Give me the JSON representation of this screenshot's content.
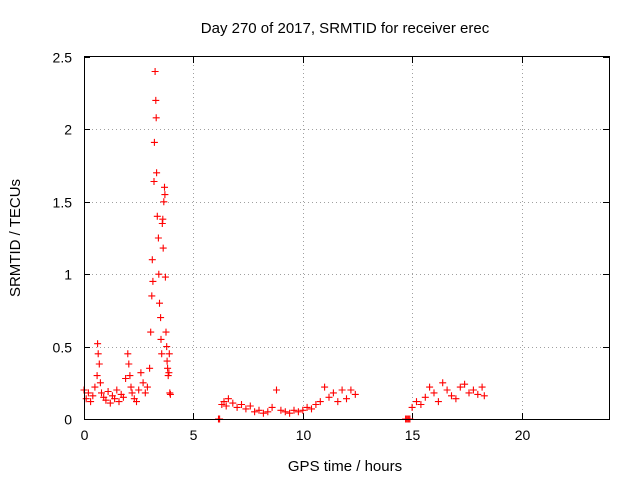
{
  "chart_data": {
    "type": "scatter",
    "title": "Day 270 of 2017, SRMTID for receiver erec",
    "xlabel": "GPS time / hours",
    "ylabel": "SRMTID / TECUs",
    "xlim": [
      0,
      24
    ],
    "ylim": [
      0,
      2.5
    ],
    "xticks": [
      0,
      5,
      10,
      15,
      20
    ],
    "xtick_labels": [
      "0",
      "5",
      "10",
      "15",
      "20"
    ],
    "yticks": [
      0,
      0.5,
      1,
      1.5,
      2,
      2.5
    ],
    "ytick_labels": [
      "0",
      "0.5",
      "1",
      "1.5",
      "2",
      "2.5"
    ],
    "grid": true,
    "marker": "+",
    "series": [
      {
        "name": "SRMTID",
        "color": "#ff0000",
        "x": [
          0.0,
          0.1,
          0.2,
          0.3,
          0.4,
          0.5,
          0.6,
          0.62,
          0.65,
          0.7,
          0.75,
          0.8,
          0.9,
          1.0,
          1.1,
          1.2,
          1.3,
          1.4,
          1.5,
          1.6,
          1.7,
          1.8,
          1.9,
          2.0,
          2.05,
          2.1,
          2.15,
          2.2,
          2.3,
          2.4,
          2.5,
          2.6,
          2.7,
          2.8,
          2.9,
          3.0,
          3.05,
          3.1,
          3.12,
          3.15,
          3.2,
          3.22,
          3.25,
          3.28,
          3.3,
          3.32,
          3.35,
          3.4,
          3.42,
          3.45,
          3.5,
          3.52,
          3.55,
          3.58,
          3.6,
          3.62,
          3.65,
          3.68,
          3.7,
          3.72,
          3.75,
          3.78,
          3.8,
          3.82,
          3.85,
          3.88,
          3.9,
          3.92,
          3.95,
          6.15,
          6.2,
          6.3,
          6.4,
          6.5,
          6.6,
          6.8,
          7.0,
          7.2,
          7.4,
          7.6,
          7.8,
          8.0,
          8.2,
          8.4,
          8.6,
          8.8,
          9.0,
          9.2,
          9.4,
          9.6,
          9.8,
          10.0,
          10.2,
          10.4,
          10.6,
          10.8,
          11.0,
          11.2,
          11.4,
          11.6,
          11.8,
          12.0,
          12.2,
          12.4,
          14.7,
          14.75,
          14.8,
          14.85,
          14.9,
          15.0,
          15.2,
          15.4,
          15.6,
          15.8,
          16.0,
          16.2,
          16.4,
          16.6,
          16.8,
          17.0,
          17.2,
          17.4,
          17.6,
          17.8,
          18.0,
          18.2,
          18.3
        ],
        "y": [
          0.2,
          0.14,
          0.18,
          0.12,
          0.16,
          0.22,
          0.3,
          0.52,
          0.45,
          0.38,
          0.25,
          0.18,
          0.15,
          0.13,
          0.19,
          0.11,
          0.16,
          0.14,
          0.2,
          0.12,
          0.17,
          0.15,
          0.28,
          0.45,
          0.38,
          0.3,
          0.22,
          0.18,
          0.14,
          0.12,
          0.2,
          0.32,
          0.25,
          0.18,
          0.22,
          0.35,
          0.6,
          0.85,
          1.1,
          0.95,
          1.64,
          1.91,
          2.4,
          2.2,
          2.08,
          1.7,
          1.4,
          1.25,
          1.0,
          0.8,
          0.7,
          0.55,
          0.45,
          1.35,
          1.38,
          1.18,
          1.5,
          1.6,
          1.55,
          0.98,
          0.6,
          0.5,
          0.4,
          0.35,
          0.3,
          0.32,
          0.45,
          0.18,
          0.17,
          0.0,
          0.0,
          0.1,
          0.12,
          0.09,
          0.14,
          0.11,
          0.08,
          0.1,
          0.07,
          0.09,
          0.05,
          0.06,
          0.04,
          0.05,
          0.08,
          0.2,
          0.06,
          0.05,
          0.04,
          0.06,
          0.05,
          0.06,
          0.08,
          0.07,
          0.1,
          0.12,
          0.22,
          0.15,
          0.18,
          0.12,
          0.2,
          0.14,
          0.2,
          0.17,
          0.0,
          0.0,
          0.0,
          0.0,
          0.0,
          0.08,
          0.12,
          0.1,
          0.15,
          0.22,
          0.18,
          0.12,
          0.25,
          0.2,
          0.16,
          0.14,
          0.22,
          0.24,
          0.18,
          0.2,
          0.17,
          0.22,
          0.16
        ]
      }
    ]
  }
}
